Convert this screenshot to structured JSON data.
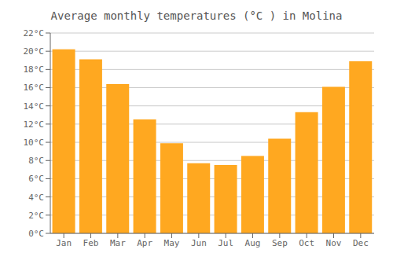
{
  "chart_data": {
    "type": "bar",
    "title": "Average monthly temperatures (°C ) in Molina",
    "categories": [
      "Jan",
      "Feb",
      "Mar",
      "Apr",
      "May",
      "Jun",
      "Jul",
      "Aug",
      "Sep",
      "Oct",
      "Nov",
      "Dec"
    ],
    "values": [
      20.2,
      19.1,
      16.4,
      12.5,
      9.9,
      7.7,
      7.5,
      8.5,
      10.4,
      13.3,
      16.1,
      18.9
    ],
    "color": "#FFA820",
    "ylim": [
      0,
      22
    ],
    "yticks": [
      {
        "value": 0,
        "label": "0°C"
      },
      {
        "value": 2,
        "label": "2°C"
      },
      {
        "value": 4,
        "label": "4°C"
      },
      {
        "value": 6,
        "label": "6°C"
      },
      {
        "value": 8,
        "label": "8°C"
      },
      {
        "value": 10,
        "label": "10°C"
      },
      {
        "value": 12,
        "label": "12°C"
      },
      {
        "value": 14,
        "label": "14°C"
      },
      {
        "value": 16,
        "label": "16°C"
      },
      {
        "value": 18,
        "label": "18°C"
      },
      {
        "value": 20,
        "label": "20°C"
      },
      {
        "value": 22,
        "label": "22°C"
      }
    ],
    "grid": true
  }
}
